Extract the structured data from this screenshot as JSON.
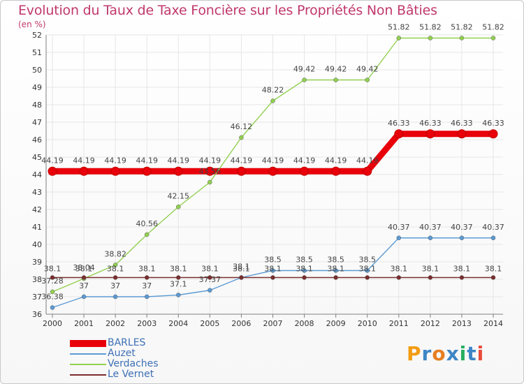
{
  "title": "Evolution du Taux de Taxe Foncière sur les Propriétés Non Bâties",
  "unit_label": "(en %)",
  "logo_text": "Proxiti",
  "colors": {
    "title": "#c0386c",
    "grid": "#e6e6e6",
    "axis": "#7f7f7f"
  },
  "chart_data": {
    "type": "line",
    "title": "Evolution du Taux de Taxe Foncière sur les Propriétés Non Bâties",
    "ylabel": "(en %)",
    "x": [
      "2000",
      "2001",
      "2002",
      "2003",
      "2004",
      "2005",
      "2006",
      "2007",
      "2008",
      "2009",
      "2010",
      "2011",
      "2012",
      "2013",
      "2014"
    ],
    "ylim": [
      36,
      52
    ],
    "yticks": [
      36,
      37,
      38,
      39,
      40,
      41,
      42,
      43,
      44,
      45,
      46,
      47,
      48,
      49,
      50,
      51,
      52
    ],
    "grid": true,
    "legend_position": "bottom-left",
    "series": [
      {
        "name": "BARLES",
        "color": "#e8000b",
        "values": [
          44.19,
          44.19,
          44.19,
          44.19,
          44.19,
          44.19,
          44.19,
          44.19,
          44.19,
          44.19,
          44.19,
          46.33,
          46.33,
          46.33,
          46.33
        ]
      },
      {
        "name": "Auzet",
        "color": "#5b9bd5",
        "values": [
          36.38,
          37,
          37,
          37,
          37.1,
          37.37,
          38.1,
          38.5,
          38.5,
          38.5,
          38.5,
          40.37,
          40.37,
          40.37,
          40.37
        ]
      },
      {
        "name": "Verdaches",
        "color": "#92d050",
        "values": [
          37.28,
          38.04,
          38.82,
          40.56,
          42.15,
          43.56,
          46.12,
          48.22,
          49.42,
          49.42,
          49.42,
          51.82,
          51.82,
          51.82,
          51.82
        ]
      },
      {
        "name": "Le Vernet",
        "color": "#7b2c2c",
        "values": [
          38.1,
          38.1,
          38.1,
          38.1,
          38.1,
          38.1,
          38.1,
          38.1,
          38.1,
          38.1,
          38.1,
          38.1,
          38.1,
          38.1,
          38.1
        ]
      }
    ],
    "point_labels": [
      [
        "44.19",
        "44.19",
        "44.19",
        "44.19",
        "44.19",
        "44.19",
        "44.19",
        "44.19",
        "44.19",
        "44.19",
        "44.19",
        "46.33",
        "46.33",
        "46.33",
        "46.33"
      ],
      [
        "36.38",
        "37",
        "37",
        "37",
        "37.1",
        "37.37",
        "38.1",
        "38.5",
        "38.5",
        "38.5",
        "38.5",
        "40.37",
        "40.37",
        "40.37",
        "40.37"
      ],
      [
        "37.28",
        "38.04",
        "38.82",
        "40.56",
        "42.15",
        "43.56",
        "46.12",
        "48.22",
        "49.42",
        "49.42",
        "49.42",
        "51.82",
        "51.82",
        "51.82",
        "51.82"
      ],
      [
        "38.1",
        "38.1",
        "38.1",
        "38.1",
        "38.1",
        "38.1",
        "38.1",
        "38.1",
        "38.1",
        "38.1",
        "38.1",
        "38.1",
        "38.1",
        "38.1",
        "38.1"
      ]
    ]
  }
}
